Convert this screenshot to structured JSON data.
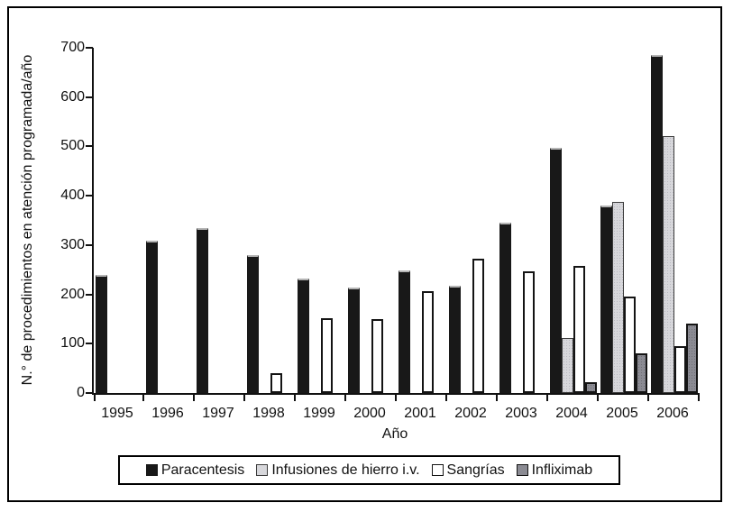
{
  "chart_data": {
    "type": "bar",
    "title": "",
    "categories": [
      "1995",
      "1996",
      "1997",
      "1998",
      "1999",
      "2000",
      "2001",
      "2002",
      "2003",
      "2004",
      "2005",
      "2006"
    ],
    "series": [
      {
        "name": "Paracentesis",
        "color": "#181818",
        "border": "#181818",
        "values": [
          240,
          308,
          335,
          280,
          232,
          214,
          248,
          218,
          345,
          497,
          380,
          685
        ]
      },
      {
        "name": "Infusiones de hierro i.v.",
        "color": "#d7d7db",
        "border": "#3c3c3c",
        "values": [
          null,
          null,
          null,
          null,
          null,
          null,
          null,
          null,
          null,
          111,
          388,
          520
        ]
      },
      {
        "name": "Sangrías",
        "color": "#ffffff",
        "border": "#141414",
        "values": [
          null,
          null,
          null,
          40,
          152,
          149,
          207,
          273,
          247,
          257,
          195,
          95
        ]
      },
      {
        "name": "Infliximab",
        "color": "#8b8b93",
        "border": "#141414",
        "values": [
          null,
          null,
          null,
          null,
          null,
          null,
          null,
          null,
          null,
          22,
          80,
          140
        ]
      }
    ],
    "xlabel": "Año",
    "ylabel": "N.° de procedimientos en atención programada/año",
    "ylim": [
      0,
      700
    ],
    "yticks": [
      0,
      100,
      200,
      300,
      400,
      500,
      600,
      700
    ],
    "legend_position": "bottom",
    "grid": false,
    "axis_color": "#111111",
    "background_color": "#ffffff"
  }
}
